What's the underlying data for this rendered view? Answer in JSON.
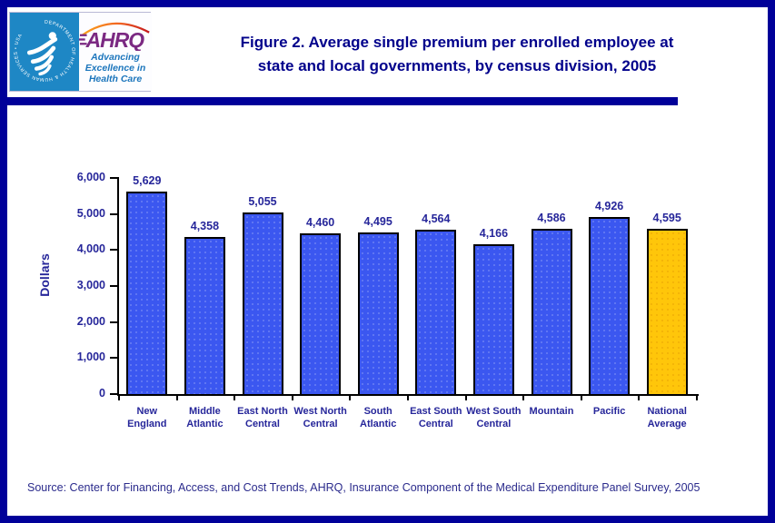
{
  "header": {
    "title_lines": [
      "Figure 2. Average single premium per enrolled employee at",
      "state and local governments, by census division, 2005"
    ],
    "logo": {
      "hhs_seal_text": "DEPARTMENT OF HEALTH & HUMAN SERVICES • USA",
      "ahrq_acronym": "AHRQ",
      "ahrq_tagline_lines": [
        "Advancing",
        "Excellence in",
        "Health Care"
      ]
    }
  },
  "chart_data": {
    "type": "bar",
    "title": "Figure 2. Average single premium per enrolled employee at state and local governments, by census division, 2005",
    "categories": [
      "New England",
      "Middle Atlantic",
      "East North Central",
      "West North Central",
      "South Atlantic",
      "East South Central",
      "West South Central",
      "Mountain",
      "Pacific",
      "National Average"
    ],
    "category_label_lines": [
      [
        "New",
        "England"
      ],
      [
        "Middle",
        "Atlantic"
      ],
      [
        "East North",
        "Central"
      ],
      [
        "West North",
        "Central"
      ],
      [
        "South",
        "Atlantic"
      ],
      [
        "East South",
        "Central"
      ],
      [
        "West South",
        "Central"
      ],
      [
        "Mountain"
      ],
      [
        "Pacific"
      ],
      [
        "National",
        "Average"
      ]
    ],
    "values": [
      5629,
      4358,
      5055,
      4460,
      4495,
      4564,
      4166,
      4586,
      4926,
      4595
    ],
    "value_labels": [
      "5,629",
      "4,358",
      "5,055",
      "4,460",
      "4,495",
      "4,564",
      "4,166",
      "4,586",
      "4,926",
      "4,595"
    ],
    "xlabel": "",
    "ylabel": "Dollars",
    "ylim": [
      0,
      6000
    ],
    "yticks": [
      0,
      1000,
      2000,
      3000,
      4000,
      5000,
      6000
    ],
    "ytick_labels": [
      "0",
      "1,000",
      "2,000",
      "3,000",
      "4,000",
      "5,000",
      "6,000"
    ],
    "grid": false,
    "legend": false,
    "bar_color": "#3B57F0",
    "highlight_index": 9,
    "highlight_color": "#FFC60A",
    "text_color": "#26269A"
  },
  "footer": {
    "source": "Source: Center for Financing, Access, and Cost Trends, AHRQ, Insurance Component of the Medical Expenditure Panel Survey, 2005"
  },
  "colors": {
    "page_border": "#000099",
    "divider": "#000099",
    "title_text": "#00008B",
    "hhs_blue": "#1E87C5",
    "ahrq_purple": "#7B2982",
    "tagline_blue": "#1B75BC",
    "source_text": "#2B2B8C",
    "axis": "#000000"
  }
}
